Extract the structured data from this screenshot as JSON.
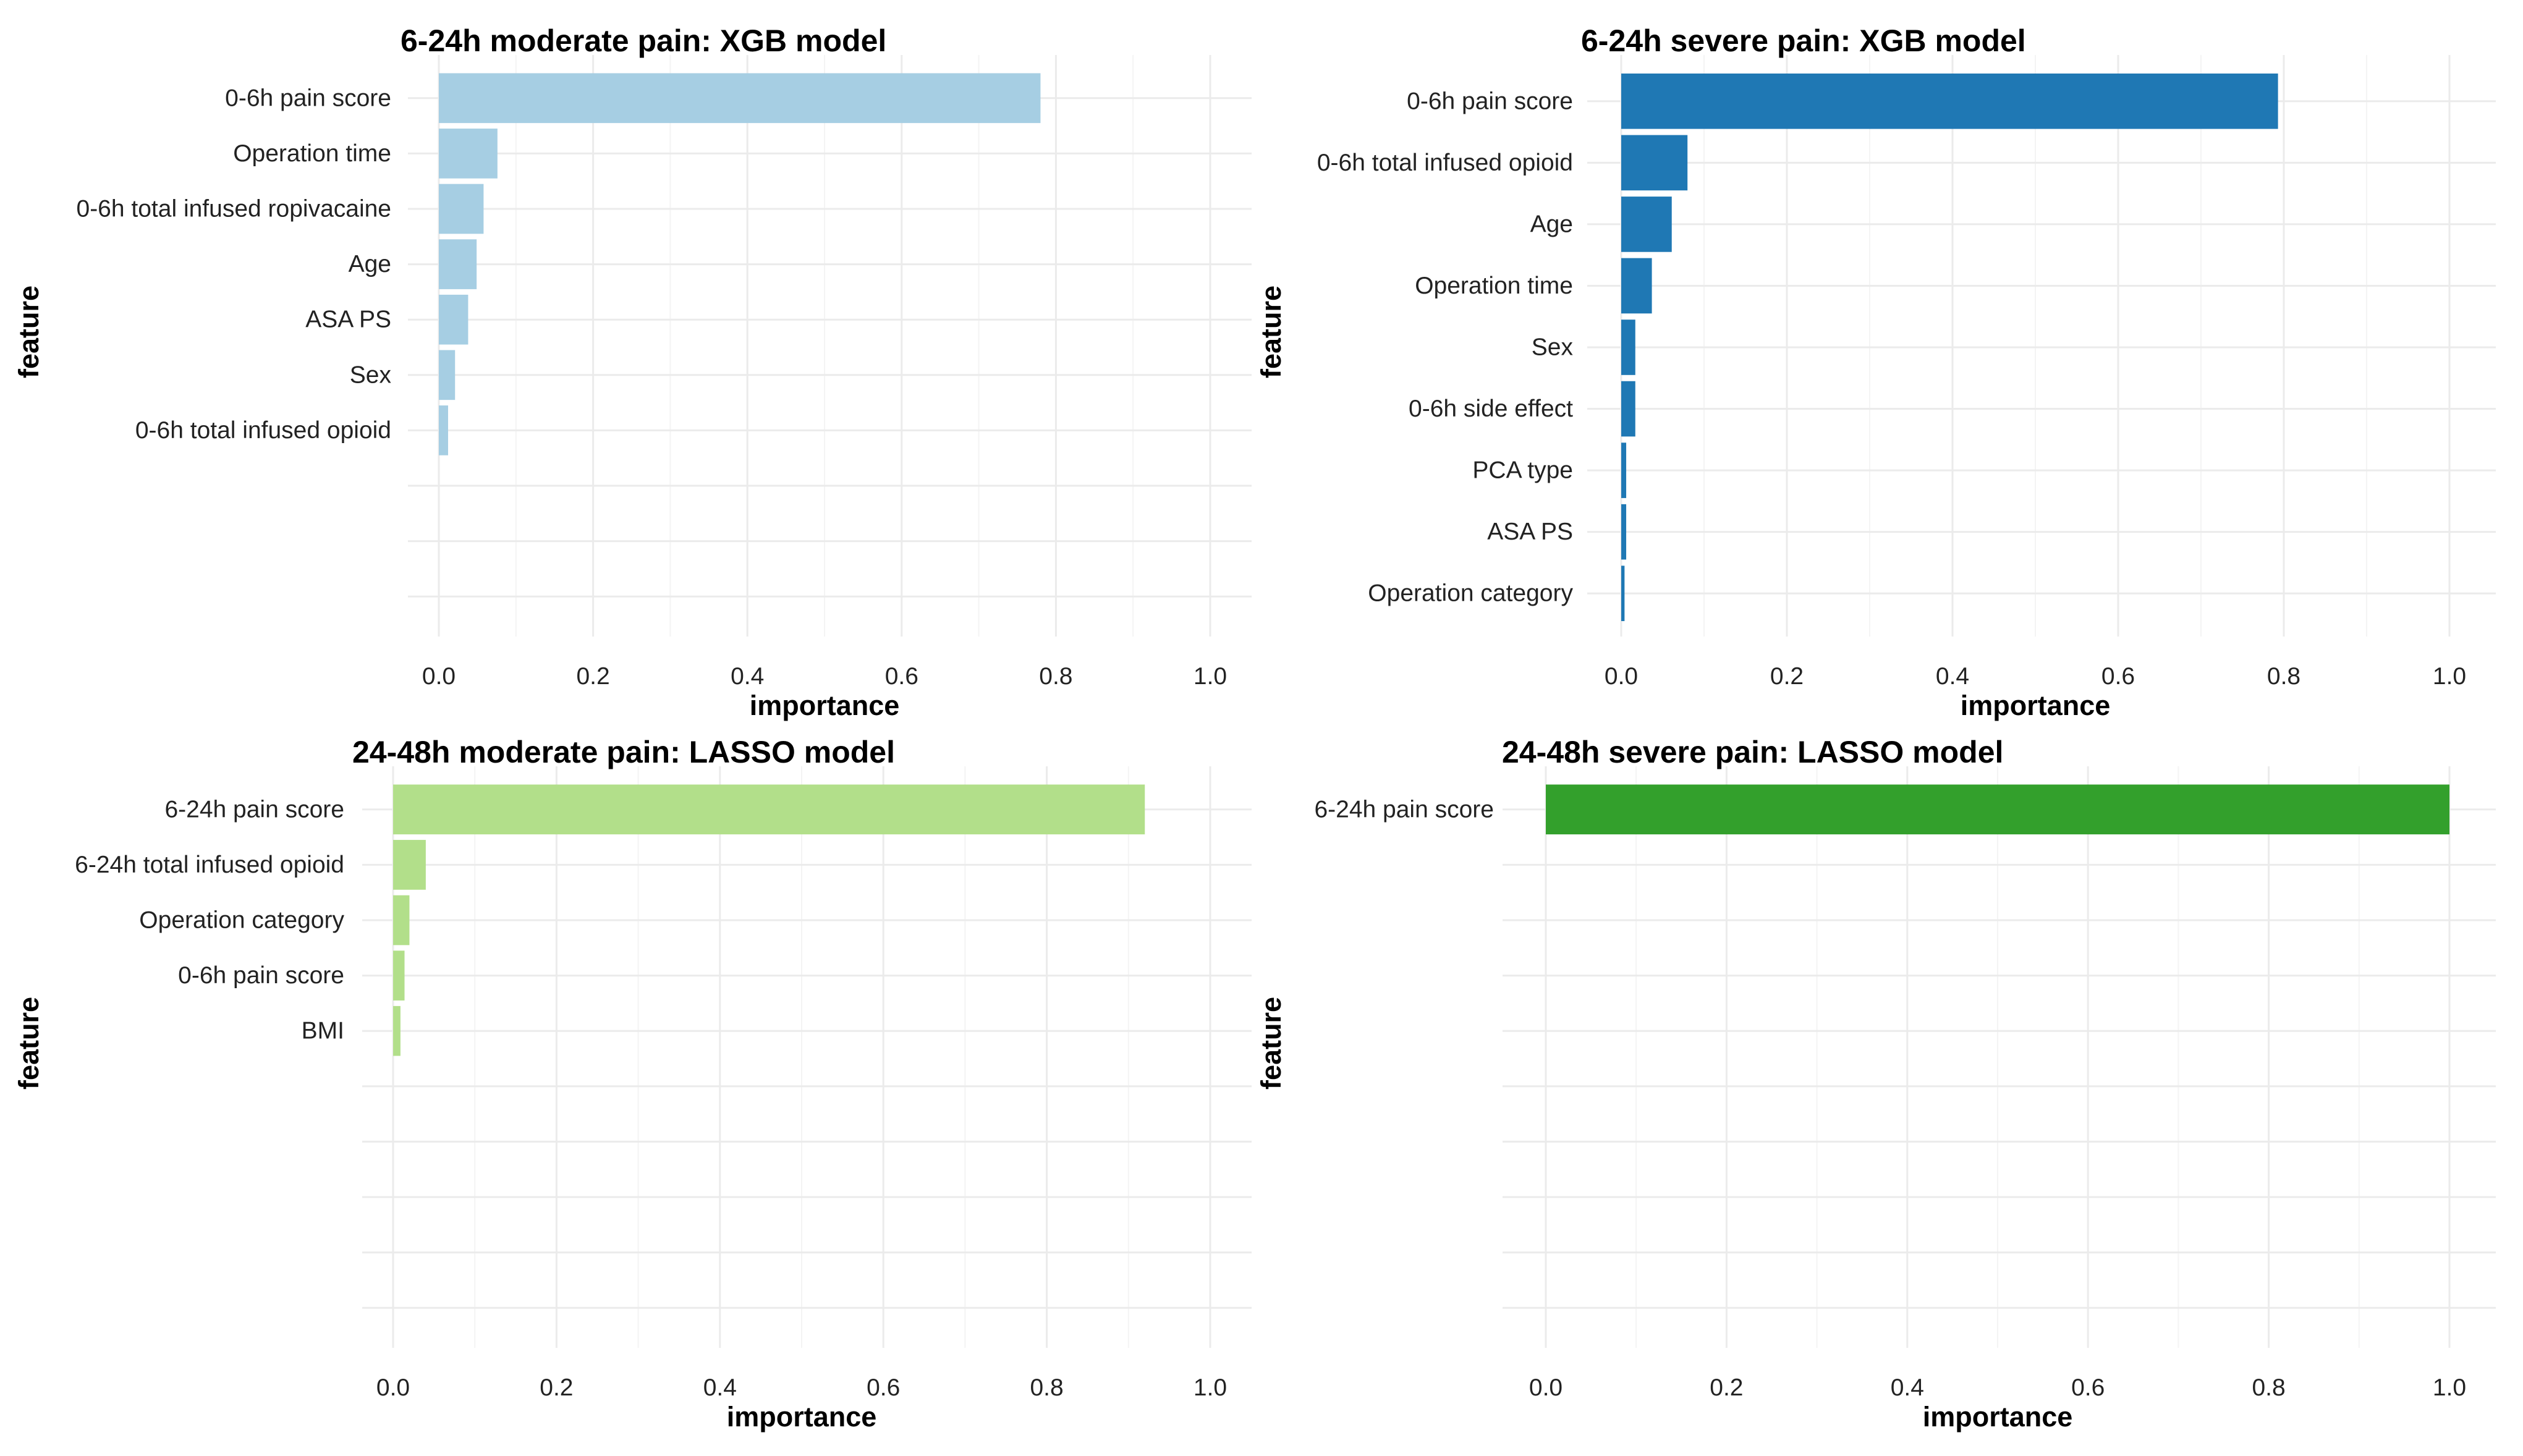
{
  "chart_data": [
    {
      "type": "bar",
      "orientation": "horizontal",
      "title": "6-24h moderate pain: XGB model",
      "xlabel": "importance",
      "ylabel": "feature",
      "xlim": [
        0,
        1
      ],
      "x_ticks": [
        "0.0",
        "0.2",
        "0.4",
        "0.6",
        "0.8",
        "1.0"
      ],
      "slots": 10,
      "color": "#a6cee3",
      "categories": [
        "0-6h pain score",
        "Operation time",
        "0-6h total infused ropivacaine",
        "Age",
        "ASA PS",
        "Sex",
        "0-6h total infused opioid"
      ],
      "values": [
        0.78,
        0.076,
        0.058,
        0.049,
        0.038,
        0.021,
        0.012
      ]
    },
    {
      "type": "bar",
      "orientation": "horizontal",
      "title": "6-24h severe pain: XGB model",
      "xlabel": "importance",
      "ylabel": "feature",
      "xlim": [
        0,
        1
      ],
      "x_ticks": [
        "0.0",
        "0.2",
        "0.4",
        "0.6",
        "0.8",
        "1.0"
      ],
      "slots": 9,
      "color": "#1f78b4",
      "categories": [
        "0-6h pain score",
        "0-6h total infused opioid",
        "Age",
        "Operation time",
        "Sex",
        "0-6h side effect",
        "PCA type",
        "ASA PS",
        "Operation category"
      ],
      "values": [
        0.793,
        0.08,
        0.061,
        0.037,
        0.017,
        0.017,
        0.006,
        0.006,
        0.004
      ]
    },
    {
      "type": "bar",
      "orientation": "horizontal",
      "title": "24-48h moderate pain: LASSO model",
      "xlabel": "importance",
      "ylabel": "feature",
      "xlim": [
        0,
        1
      ],
      "x_ticks": [
        "0.0",
        "0.2",
        "0.4",
        "0.6",
        "0.8",
        "1.0"
      ],
      "slots": 10,
      "color": "#b2df8a",
      "categories": [
        "6-24h pain score",
        "6-24h total infused opioid",
        "Operation category",
        "0-6h pain score",
        "BMI"
      ],
      "values": [
        0.92,
        0.04,
        0.02,
        0.014,
        0.009
      ]
    },
    {
      "type": "bar",
      "orientation": "horizontal",
      "title": "24-48h severe pain: LASSO model",
      "xlabel": "importance",
      "ylabel": "feature",
      "xlim": [
        0,
        1
      ],
      "x_ticks": [
        "0.0",
        "0.2",
        "0.4",
        "0.6",
        "0.8",
        "1.0"
      ],
      "slots": 10,
      "color": "#33a02c",
      "categories": [
        "6-24h pain score"
      ],
      "values": [
        1.0
      ]
    }
  ]
}
